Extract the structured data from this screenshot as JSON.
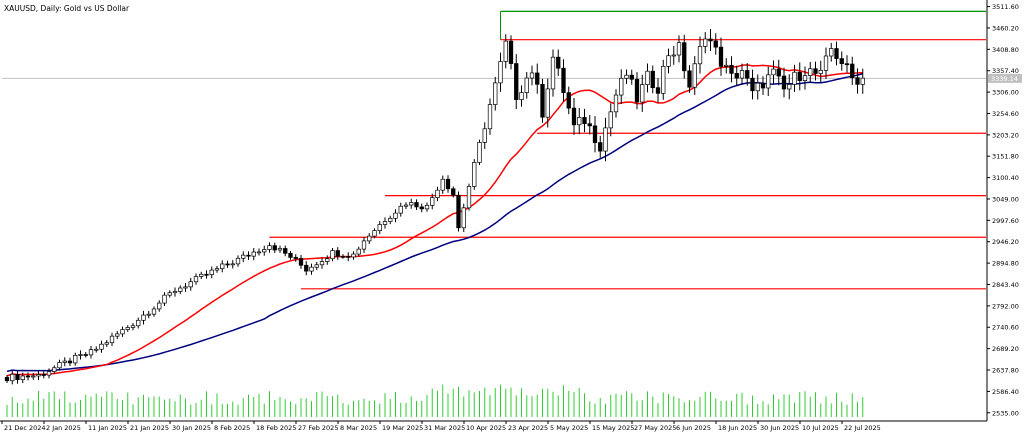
{
  "window": {
    "title": "XAUUSD, Daily:  Gold vs US Dollar"
  },
  "price_marker": {
    "label": "3339.14"
  },
  "chart_data": {
    "type": "candlestick",
    "symbol": "XAUUSD",
    "timeframe": "Daily",
    "ylim": [
      2520,
      3525
    ],
    "y_ticks": [
      "3511.60",
      "3460.20",
      "3408.80",
      "3357.40",
      "3306.00",
      "3254.60",
      "3203.20",
      "3151.80",
      "3100.40",
      "3049.00",
      "2997.60",
      "2946.20",
      "2894.80",
      "2843.40",
      "2792.00",
      "2740.60",
      "2689.20",
      "2637.80",
      "2586.40",
      "2535.00"
    ],
    "x_ticks": [
      "21 Dec 2024",
      "2 Jan 2025",
      "11 Jan 2025",
      "21 Jan 2025",
      "30 Jan 2025",
      "8 Feb 2025",
      "18 Feb 2025",
      "27 Feb 2025",
      "8 Mar 2025",
      "19 Mar 2025",
      "31 Mar 2025",
      "10 Apr 2025",
      "23 Apr 2025",
      "5 May 2025",
      "15 May 2025",
      "27 May 2025",
      "6 Jun 2025",
      "18 Jun 2025",
      "30 Jun 2025",
      "10 Jul 2025",
      "22 Jul 2025"
    ],
    "x_tick_bars": [
      0,
      8,
      16,
      24,
      32,
      40,
      48,
      56,
      64,
      72,
      80,
      88,
      96,
      104,
      112,
      120,
      128,
      136,
      144,
      152,
      160
    ],
    "n_bars": 164,
    "open_first": 2620,
    "close_path": [
      [
        0,
        2620
      ],
      [
        6,
        2625
      ],
      [
        12,
        2660
      ],
      [
        16,
        2680
      ],
      [
        24,
        2750
      ],
      [
        32,
        2830
      ],
      [
        40,
        2880
      ],
      [
        46,
        2915
      ],
      [
        50,
        2940
      ],
      [
        54,
        2910
      ],
      [
        57,
        2880
      ],
      [
        62,
        2920
      ],
      [
        66,
        2915
      ],
      [
        68,
        2950
      ],
      [
        72,
        3000
      ],
      [
        76,
        3040
      ],
      [
        80,
        3030
      ],
      [
        83,
        3100
      ],
      [
        85,
        3060
      ],
      [
        86,
        2980
      ],
      [
        88,
        3080
      ],
      [
        91,
        3230
      ],
      [
        93,
        3320
      ],
      [
        95,
        3420
      ],
      [
        97,
        3300
      ],
      [
        100,
        3360
      ],
      [
        102,
        3260
      ],
      [
        104,
        3390
      ],
      [
        106,
        3310
      ],
      [
        108,
        3220
      ],
      [
        110,
        3240
      ],
      [
        113,
        3180
      ],
      [
        116,
        3300
      ],
      [
        118,
        3350
      ],
      [
        120,
        3290
      ],
      [
        122,
        3340
      ],
      [
        124,
        3320
      ],
      [
        126,
        3400
      ],
      [
        128,
        3410
      ],
      [
        130,
        3320
      ],
      [
        133,
        3450
      ],
      [
        136,
        3380
      ],
      [
        138,
        3340
      ],
      [
        140,
        3360
      ],
      [
        142,
        3300
      ],
      [
        144,
        3330
      ],
      [
        146,
        3350
      ],
      [
        148,
        3310
      ],
      [
        150,
        3340
      ],
      [
        152,
        3360
      ],
      [
        155,
        3345
      ],
      [
        157,
        3410
      ],
      [
        159,
        3380
      ],
      [
        161,
        3339
      ],
      [
        163,
        3339
      ]
    ],
    "hlines": [
      {
        "y": 3500,
        "from_bar": 94,
        "color": "#009000"
      },
      {
        "y": 3432,
        "from_bar": 94,
        "color": "#ff0000"
      },
      {
        "y": 3207,
        "from_bar": 101,
        "color": "#ff0000"
      },
      {
        "y": 3057,
        "from_bar": 72,
        "color": "#ff0000"
      },
      {
        "y": 2957,
        "from_bar": 50,
        "color": "#ff0000"
      },
      {
        "y": 2833,
        "from_bar": 56,
        "color": "#ff0000"
      }
    ],
    "ma_fast": {
      "color": "#ff0000",
      "period": 20
    },
    "ma_slow": {
      "color": "#000080",
      "period": 50
    },
    "colors": {
      "up": "#ffffff",
      "down": "#000000",
      "outline": "#000000",
      "volume": "#32cd32",
      "grid_line": "#c0c0c0",
      "axis": "#000000"
    }
  }
}
